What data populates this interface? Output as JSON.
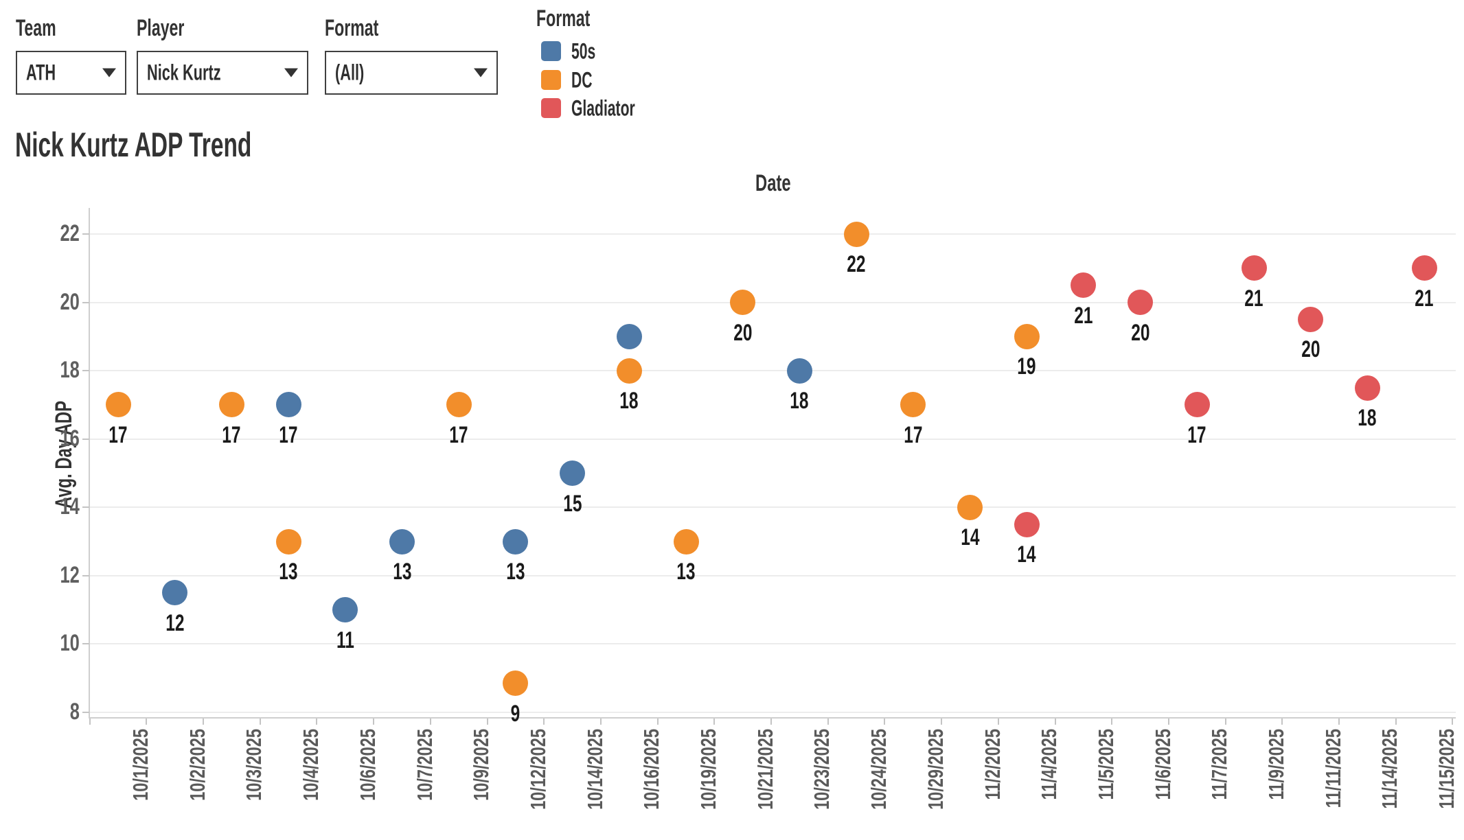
{
  "filters": [
    {
      "label": "Team",
      "value": "ATH"
    },
    {
      "label": "Player",
      "value": "Nick Kurtz"
    },
    {
      "label": "Format",
      "value": "(All)"
    }
  ],
  "legend": {
    "title": "Format"
  },
  "chart_data": {
    "type": "scatter",
    "title": "Nick Kurtz ADP Trend",
    "xlabel": "Date",
    "ylabel": "Avg. Day ADP",
    "ylim": [
      8,
      22
    ],
    "y_ticks": [
      8,
      10,
      12,
      14,
      16,
      18,
      20,
      22
    ],
    "grid": "horizontal",
    "legend_position": "top",
    "categories": [
      "10/1/2025",
      "10/2/2025",
      "10/3/2025",
      "10/4/2025",
      "10/6/2025",
      "10/7/2025",
      "10/9/2025",
      "10/12/2025",
      "10/14/2025",
      "10/16/2025",
      "10/19/2025",
      "10/21/2025",
      "10/23/2025",
      "10/24/2025",
      "10/29/2025",
      "11/2/2025",
      "11/4/2025",
      "11/5/2025",
      "11/6/2025",
      "11/7/2025",
      "11/9/2025",
      "11/11/2025",
      "11/14/2025",
      "11/15/2025"
    ],
    "series": [
      {
        "name": "50s",
        "color": "#4E79A7",
        "points": [
          {
            "date": "10/2/2025",
            "value": 11.5,
            "label": "12"
          },
          {
            "date": "10/4/2025",
            "value": 17,
            "label": "17"
          },
          {
            "date": "10/6/2025",
            "value": 11,
            "label": "11"
          },
          {
            "date": "10/7/2025",
            "value": 13,
            "label": "13"
          },
          {
            "date": "10/12/2025",
            "value": 13,
            "label": "13"
          },
          {
            "date": "10/14/2025",
            "value": 15,
            "label": "15"
          },
          {
            "date": "10/16/2025",
            "value": 19,
            "label": ""
          },
          {
            "date": "10/23/2025",
            "value": 18,
            "label": "18"
          }
        ]
      },
      {
        "name": "DC",
        "color": "#F28E2B",
        "points": [
          {
            "date": "10/1/2025",
            "value": 17,
            "label": "17"
          },
          {
            "date": "10/3/2025",
            "value": 17,
            "label": "17"
          },
          {
            "date": "10/4/2025",
            "value": 13,
            "label": "13"
          },
          {
            "date": "10/9/2025",
            "value": 17,
            "label": "17"
          },
          {
            "date": "10/12/2025",
            "value": 8.85,
            "label": "9"
          },
          {
            "date": "10/16/2025",
            "value": 18,
            "label": "18"
          },
          {
            "date": "10/19/2025",
            "value": 13,
            "label": "13"
          },
          {
            "date": "10/21/2025",
            "value": 20,
            "label": "20"
          },
          {
            "date": "10/24/2025",
            "value": 22,
            "label": "22"
          },
          {
            "date": "10/29/2025",
            "value": 17,
            "label": "17"
          },
          {
            "date": "11/2/2025",
            "value": 14,
            "label": "14"
          },
          {
            "date": "11/4/2025",
            "value": 19,
            "label": "19"
          }
        ]
      },
      {
        "name": "Gladiator",
        "color": "#E15759",
        "points": [
          {
            "date": "11/4/2025",
            "value": 13.5,
            "label": "14"
          },
          {
            "date": "11/5/2025",
            "value": 20.5,
            "label": "21"
          },
          {
            "date": "11/6/2025",
            "value": 20,
            "label": "20"
          },
          {
            "date": "11/7/2025",
            "value": 17,
            "label": "17"
          },
          {
            "date": "11/9/2025",
            "value": 21,
            "label": "21"
          },
          {
            "date": "11/11/2025",
            "value": 19.5,
            "label": "20"
          },
          {
            "date": "11/14/2025",
            "value": 17.5,
            "label": "18"
          },
          {
            "date": "11/15/2025",
            "value": 21,
            "label": "21"
          }
        ]
      }
    ]
  }
}
